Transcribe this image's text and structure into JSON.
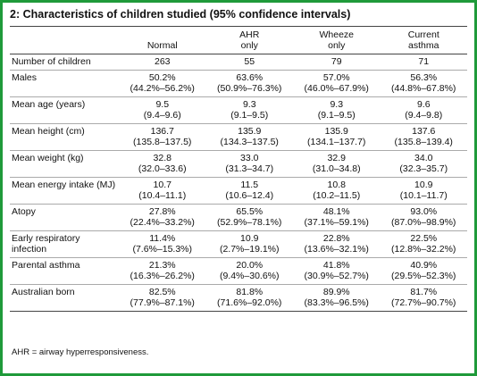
{
  "title": "2: Characteristics of children studied (95% confidence intervals)",
  "header": [
    [
      "Normal"
    ],
    [
      "AHR",
      "only"
    ],
    [
      "Wheeze",
      "only"
    ],
    [
      "Current",
      "asthma"
    ]
  ],
  "rows": [
    {
      "label": "Number of children",
      "cells": [
        {
          "value": "263"
        },
        {
          "value": "55"
        },
        {
          "value": "79"
        },
        {
          "value": "71"
        }
      ]
    },
    {
      "label": "Males",
      "cells": [
        {
          "value": "50.2%",
          "ci": "(44.2%–56.2%)"
        },
        {
          "value": "63.6%",
          "ci": "(50.9%–76.3%)"
        },
        {
          "value": "57.0%",
          "ci": "(46.0%–67.9%)"
        },
        {
          "value": "56.3%",
          "ci": "(44.8%–67.8%)"
        }
      ]
    },
    {
      "label": "Mean age (years)",
      "cells": [
        {
          "value": "9.5",
          "ci": "(9.4–9.6)"
        },
        {
          "value": "9.3",
          "ci": "(9.1–9.5)"
        },
        {
          "value": "9.3",
          "ci": "(9.1–9.5)"
        },
        {
          "value": "9.6",
          "ci": "(9.4–9.8)"
        }
      ]
    },
    {
      "label": "Mean height (cm)",
      "cells": [
        {
          "value": "136.7",
          "ci": "(135.8–137.5)"
        },
        {
          "value": "135.9",
          "ci": "(134.3–137.5)"
        },
        {
          "value": "135.9",
          "ci": "(134.1–137.7)"
        },
        {
          "value": "137.6",
          "ci": "(135.8–139.4)"
        }
      ]
    },
    {
      "label": "Mean weight (kg)",
      "cells": [
        {
          "value": "32.8",
          "ci": "(32.0–33.6)"
        },
        {
          "value": "33.0",
          "ci": "(31.3–34.7)"
        },
        {
          "value": "32.9",
          "ci": "(31.0–34.8)"
        },
        {
          "value": "34.0",
          "ci": "(32.3–35.7)"
        }
      ]
    },
    {
      "label": "Mean energy intake (MJ)",
      "cells": [
        {
          "value": "10.7",
          "ci": "(10.4–11.1)"
        },
        {
          "value": "11.5",
          "ci": "(10.6–12.4)"
        },
        {
          "value": "10.8",
          "ci": "(10.2–11.5)"
        },
        {
          "value": "10.9",
          "ci": "(10.1–11.7)"
        }
      ]
    },
    {
      "label": "Atopy",
      "cells": [
        {
          "value": "27.8%",
          "ci": "(22.4%–33.2%)"
        },
        {
          "value": "65.5%",
          "ci": "(52.9%–78.1%)"
        },
        {
          "value": "48.1%",
          "ci": "(37.1%–59.1%)"
        },
        {
          "value": "93.0%",
          "ci": "(87.0%–98.9%)"
        }
      ]
    },
    {
      "label": "Early respiratory infection",
      "cells": [
        {
          "value": "11.4%",
          "ci": "(7.6%–15.3%)"
        },
        {
          "value": "10.9",
          "ci": "(2.7%–19.1%)"
        },
        {
          "value": "22.8%",
          "ci": "(13.6%–32.1%)"
        },
        {
          "value": "22.5%",
          "ci": "(12.8%–32.2%)"
        }
      ]
    },
    {
      "label": "Parental asthma",
      "cells": [
        {
          "value": "21.3%",
          "ci": "(16.3%–26.2%)"
        },
        {
          "value": "20.0%",
          "ci": "(9.4%–30.6%)"
        },
        {
          "value": "41.8%",
          "ci": "(30.9%–52.7%)"
        },
        {
          "value": "40.9%",
          "ci": "(29.5%–52.3%)"
        }
      ]
    },
    {
      "label": "Australian born",
      "cells": [
        {
          "value": "82.5%",
          "ci": "(77.9%–87.1%)"
        },
        {
          "value": "81.8%",
          "ci": "(71.6%–92.0%)"
        },
        {
          "value": "89.9%",
          "ci": "(83.3%–96.5%)"
        },
        {
          "value": "81.7%",
          "ci": "(72.7%–90.7%)"
        }
      ]
    }
  ],
  "footnote": "AHR = airway hyperresponsiveness."
}
